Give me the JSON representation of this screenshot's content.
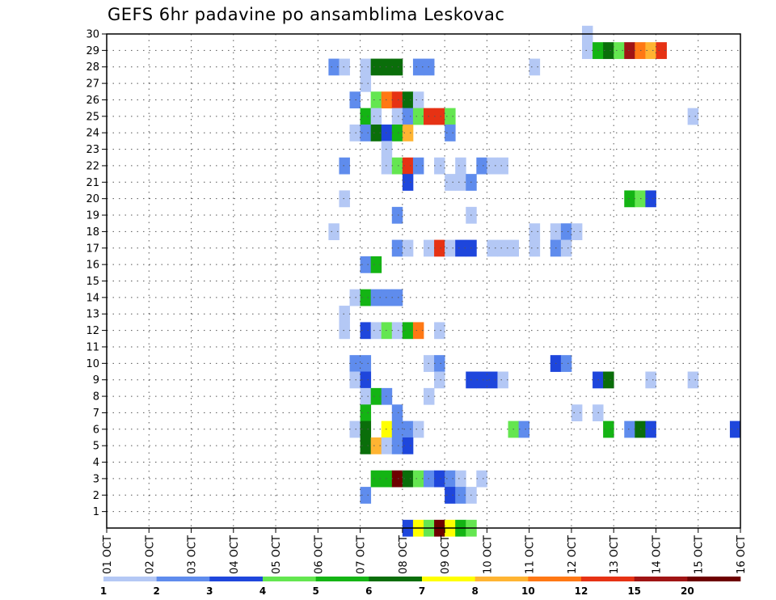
{
  "chart_data": {
    "type": "heatmap",
    "title": "GEFS 6hr padavine po ansamblima Leskovac",
    "x_tick_labels": [
      "01 OCT",
      "02 OCT",
      "03 OCT",
      "04 OCT",
      "05 OCT",
      "06 OCT",
      "07 OCT",
      "08 OCT",
      "09 OCT",
      "10 OCT",
      "11 OCT",
      "12 OCT",
      "13 OCT",
      "14 OCT",
      "15 OCT",
      "16 OCT"
    ],
    "y_tick_labels": [
      "1",
      "2",
      "3",
      "4",
      "5",
      "6",
      "7",
      "8",
      "9",
      "10",
      "11",
      "12",
      "13",
      "14",
      "15",
      "16",
      "17",
      "18",
      "19",
      "20",
      "21",
      "22",
      "23",
      "24",
      "25",
      "26",
      "27",
      "28",
      "29",
      "30"
    ],
    "xlim_days": [
      1,
      16
    ],
    "ylim": [
      0,
      30
    ],
    "step_hours": 6,
    "grid": true,
    "colorbar": {
      "position": "bottom",
      "labels": [
        "1",
        "2",
        "3",
        "4",
        "5",
        "6",
        "7",
        "8",
        "10",
        "12",
        "15",
        "20"
      ],
      "colors": [
        "#b4c8f5",
        "#5f8ced",
        "#1e46dc",
        "#64e650",
        "#14b414",
        "#0a6e0a",
        "#ffff00",
        "#ffb432",
        "#ff7814",
        "#e63214",
        "#a01414",
        "#6e0000"
      ]
    },
    "cells_format": "[member, step_index_from_01_OCT_00Z, color_class]",
    "cells": [
      [
        30,
        45,
        0
      ],
      [
        29,
        45,
        0
      ],
      [
        29,
        46,
        4
      ],
      [
        29,
        47,
        5
      ],
      [
        29,
        48,
        3
      ],
      [
        29,
        49,
        10
      ],
      [
        29,
        50,
        8
      ],
      [
        29,
        51,
        7
      ],
      [
        29,
        52,
        9
      ],
      [
        28,
        21,
        1
      ],
      [
        28,
        22,
        0
      ],
      [
        28,
        24,
        0
      ],
      [
        28,
        25,
        5
      ],
      [
        28,
        26,
        5
      ],
      [
        28,
        27,
        5
      ],
      [
        28,
        29,
        1
      ],
      [
        28,
        30,
        1
      ],
      [
        28,
        40,
        0
      ],
      [
        27,
        24,
        0
      ],
      [
        26,
        23,
        1
      ],
      [
        26,
        25,
        3
      ],
      [
        26,
        26,
        8
      ],
      [
        26,
        27,
        9
      ],
      [
        26,
        28,
        5
      ],
      [
        26,
        29,
        0
      ],
      [
        25,
        24,
        4
      ],
      [
        25,
        25,
        0
      ],
      [
        25,
        27,
        0
      ],
      [
        25,
        28,
        1
      ],
      [
        25,
        29,
        3
      ],
      [
        25,
        30,
        9
      ],
      [
        25,
        31,
        9
      ],
      [
        25,
        32,
        3
      ],
      [
        25,
        55,
        0
      ],
      [
        24,
        23,
        0
      ],
      [
        24,
        24,
        1
      ],
      [
        24,
        25,
        5
      ],
      [
        24,
        26,
        2
      ],
      [
        24,
        27,
        4
      ],
      [
        24,
        28,
        7
      ],
      [
        24,
        32,
        1
      ],
      [
        23,
        26,
        0
      ],
      [
        22,
        22,
        1
      ],
      [
        22,
        26,
        0
      ],
      [
        22,
        27,
        3
      ],
      [
        22,
        28,
        9
      ],
      [
        22,
        29,
        1
      ],
      [
        22,
        31,
        0
      ],
      [
        22,
        33,
        0
      ],
      [
        22,
        35,
        1
      ],
      [
        22,
        36,
        0
      ],
      [
        22,
        37,
        0
      ],
      [
        21,
        28,
        2
      ],
      [
        21,
        32,
        0
      ],
      [
        21,
        33,
        0
      ],
      [
        21,
        34,
        1
      ],
      [
        20,
        22,
        0
      ],
      [
        20,
        49,
        4
      ],
      [
        20,
        50,
        3
      ],
      [
        20,
        51,
        2
      ],
      [
        19,
        27,
        1
      ],
      [
        19,
        34,
        0
      ],
      [
        18,
        21,
        0
      ],
      [
        18,
        40,
        0
      ],
      [
        18,
        42,
        0
      ],
      [
        18,
        43,
        1
      ],
      [
        18,
        44,
        0
      ],
      [
        17,
        27,
        1
      ],
      [
        17,
        28,
        0
      ],
      [
        17,
        30,
        0
      ],
      [
        17,
        31,
        9
      ],
      [
        17,
        32,
        0
      ],
      [
        17,
        33,
        2
      ],
      [
        17,
        34,
        2
      ],
      [
        17,
        36,
        0
      ],
      [
        17,
        37,
        0
      ],
      [
        17,
        38,
        0
      ],
      [
        17,
        40,
        0
      ],
      [
        17,
        42,
        1
      ],
      [
        17,
        43,
        0
      ],
      [
        16,
        24,
        1
      ],
      [
        16,
        25,
        4
      ],
      [
        14,
        23,
        0
      ],
      [
        14,
        24,
        4
      ],
      [
        14,
        25,
        1
      ],
      [
        14,
        26,
        1
      ],
      [
        14,
        27,
        1
      ],
      [
        13,
        22,
        0
      ],
      [
        12,
        22,
        0
      ],
      [
        12,
        24,
        2
      ],
      [
        12,
        25,
        0
      ],
      [
        12,
        26,
        3
      ],
      [
        12,
        27,
        0
      ],
      [
        12,
        28,
        4
      ],
      [
        12,
        29,
        8
      ],
      [
        12,
        31,
        0
      ],
      [
        10,
        23,
        1
      ],
      [
        10,
        24,
        1
      ],
      [
        10,
        30,
        0
      ],
      [
        10,
        31,
        1
      ],
      [
        10,
        42,
        2
      ],
      [
        10,
        43,
        1
      ],
      [
        9,
        23,
        0
      ],
      [
        9,
        24,
        2
      ],
      [
        9,
        31,
        0
      ],
      [
        9,
        34,
        2
      ],
      [
        9,
        35,
        2
      ],
      [
        9,
        36,
        2
      ],
      [
        9,
        37,
        0
      ],
      [
        9,
        46,
        2
      ],
      [
        9,
        47,
        5
      ],
      [
        9,
        51,
        0
      ],
      [
        9,
        55,
        0
      ],
      [
        8,
        24,
        0
      ],
      [
        8,
        25,
        4
      ],
      [
        8,
        26,
        1
      ],
      [
        8,
        30,
        0
      ],
      [
        7,
        24,
        4
      ],
      [
        7,
        27,
        1
      ],
      [
        7,
        44,
        0
      ],
      [
        7,
        46,
        0
      ],
      [
        6,
        23,
        0
      ],
      [
        6,
        24,
        5
      ],
      [
        6,
        26,
        6
      ],
      [
        6,
        27,
        1
      ],
      [
        6,
        28,
        1
      ],
      [
        6,
        29,
        0
      ],
      [
        6,
        38,
        3
      ],
      [
        6,
        39,
        1
      ],
      [
        6,
        47,
        4
      ],
      [
        6,
        49,
        1
      ],
      [
        6,
        50,
        5
      ],
      [
        6,
        51,
        2
      ],
      [
        6,
        59,
        2
      ],
      [
        5,
        24,
        5
      ],
      [
        5,
        25,
        7
      ],
      [
        5,
        26,
        0
      ],
      [
        5,
        27,
        1
      ],
      [
        5,
        28,
        2
      ],
      [
        3,
        25,
        4
      ],
      [
        3,
        26,
        4
      ],
      [
        3,
        27,
        11
      ],
      [
        3,
        28,
        5
      ],
      [
        3,
        29,
        3
      ],
      [
        3,
        30,
        1
      ],
      [
        3,
        31,
        2
      ],
      [
        3,
        32,
        1
      ],
      [
        3,
        33,
        0
      ],
      [
        3,
        35,
        0
      ],
      [
        2,
        24,
        1
      ],
      [
        2,
        32,
        2
      ],
      [
        2,
        33,
        1
      ],
      [
        2,
        34,
        0
      ],
      [
        0,
        28,
        2
      ],
      [
        0,
        29,
        6
      ],
      [
        0,
        30,
        3
      ],
      [
        0,
        31,
        11
      ],
      [
        0,
        32,
        6
      ],
      [
        0,
        33,
        4
      ],
      [
        0,
        34,
        3
      ]
    ]
  }
}
